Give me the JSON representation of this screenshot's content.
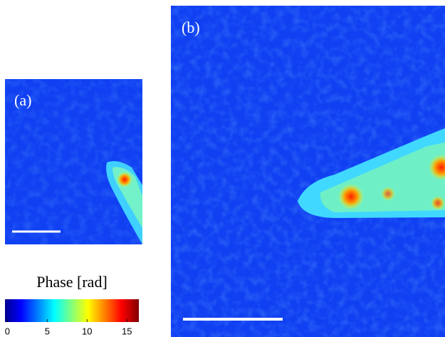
{
  "panels": [
    {
      "label": "(a)"
    },
    {
      "label": "(b)"
    }
  ],
  "colorbar": {
    "title": "Phase [rad]",
    "lim": [
      -0.3,
      16.5
    ],
    "ticks": [
      0,
      5,
      10,
      15
    ]
  }
}
